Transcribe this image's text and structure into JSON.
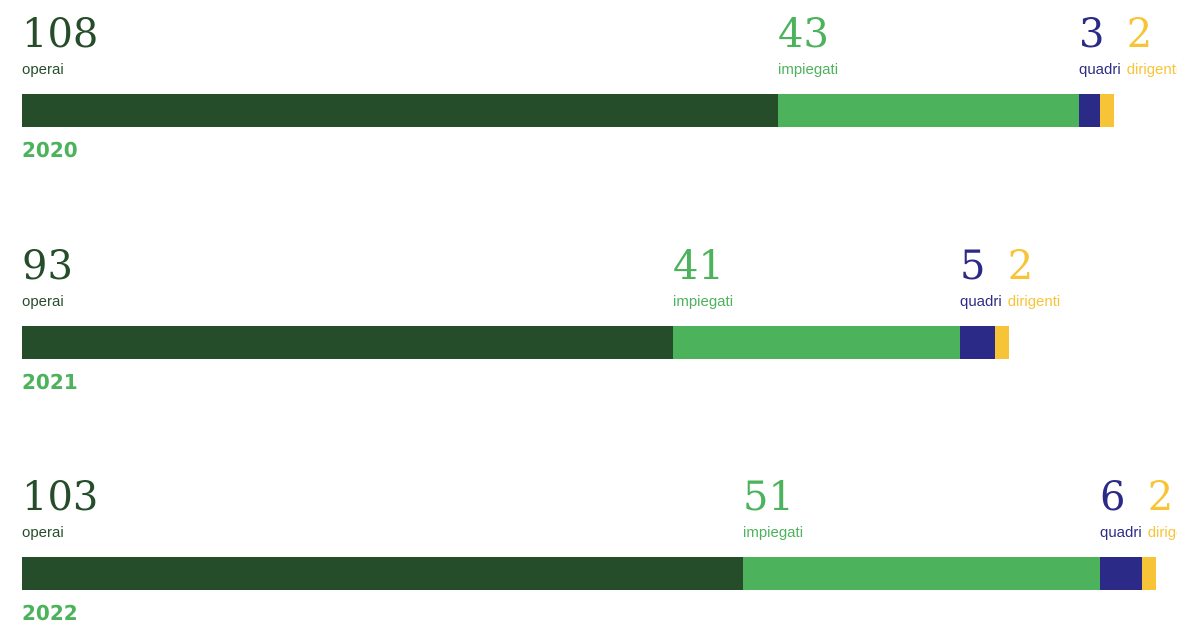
{
  "chart_data": {
    "type": "bar",
    "orientation": "horizontal-stacked",
    "categories": [
      "2020",
      "2021",
      "2022"
    ],
    "series": [
      {
        "name": "operai",
        "values": [
          108,
          93,
          103
        ]
      },
      {
        "name": "impiegati",
        "values": [
          43,
          41,
          51
        ]
      },
      {
        "name": "quadri",
        "values": [
          3,
          5,
          6
        ]
      },
      {
        "name": "dirigenti",
        "values": [
          2,
          2,
          2
        ]
      }
    ],
    "colors": {
      "operai": "#264d2a",
      "impiegati": "#4db25c",
      "quadri": "#2b2a86",
      "dirigenti": "#f8c437",
      "year": "#4db25c"
    },
    "title": "",
    "xlabel": "",
    "ylabel": "",
    "legend": "none",
    "grid": false
  }
}
